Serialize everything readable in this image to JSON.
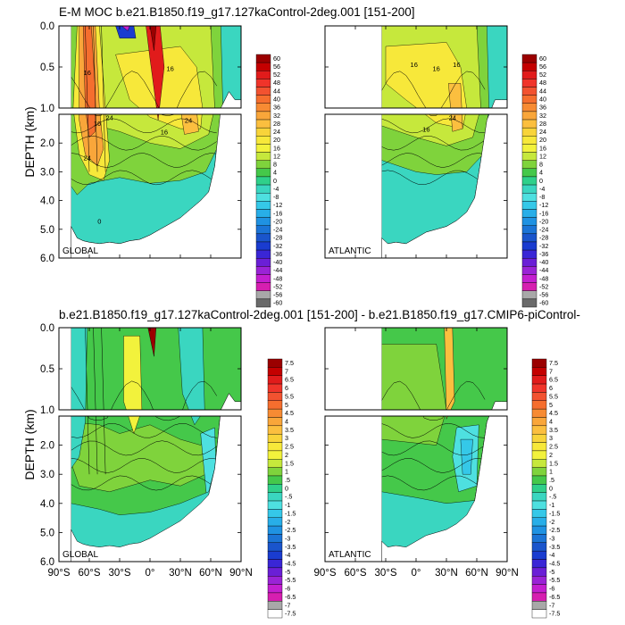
{
  "titles": {
    "top": "E-M MOC  b.e21.B1850.f19_g17.127kaControl-2deg.001 [151-200]",
    "bottom": "b.e21.B1850.f19_g17.127kaControl-2deg.001 [151-200] - b.e21.B1850.f19_g17.CMIP6-piControl-"
  },
  "colors": {
    "bg": "#ffffff",
    "land": "#ffffff",
    "contour": "#000000"
  },
  "chart_data": [
    {
      "type": "heatmap",
      "name": "global-moc",
      "panel_label": "GLOBAL",
      "ylabel": "DEPTH (km)",
      "xlim": [
        -90,
        90
      ],
      "ylim": [
        6.0,
        0.0
      ],
      "y_break_km": 1.0,
      "ytick_labels_upper": [
        "0.0",
        "0.5",
        "1.0"
      ],
      "ytick_labels_lower": [
        "2.0",
        "3.0",
        "4.0",
        "5.0",
        "6.0"
      ],
      "xtick_labels": [],
      "contour_labels": [
        "16",
        "16",
        "16",
        "24",
        "24",
        "24",
        "16",
        "0"
      ],
      "levels": [
        -60,
        -56,
        -52,
        -48,
        -44,
        -40,
        -36,
        -32,
        -28,
        -24,
        -20,
        -16,
        -12,
        -8,
        -4,
        0,
        4,
        8,
        12,
        16,
        20,
        24,
        28,
        32,
        36,
        40,
        44,
        48,
        52,
        56,
        60
      ],
      "dominant": "strong positive overturning cell in the Southern Ocean and a broad 16–24 Sv cell in the northern hemisphere; weak negative (−4 to 0) abyssal cell below 3 km"
    },
    {
      "type": "heatmap",
      "name": "atlantic-moc",
      "panel_label": "ATLANTIC",
      "xlim": [
        -90,
        90
      ],
      "ylim": [
        6.0,
        0.0
      ],
      "contour_labels": [
        "16",
        "16",
        "16",
        "24",
        "16"
      ],
      "dominant": "Atlantic overturning cell peaking near 24 Sv around 40°N, 1 km depth; negative abyssal cell"
    },
    {
      "type": "heatmap",
      "name": "global-moc-difference",
      "panel_label": "GLOBAL",
      "ylabel": "DEPTH (km)",
      "xlim": [
        -90,
        90
      ],
      "ylim": [
        6.0,
        0.0
      ],
      "ytick_labels_upper": [
        "0.0",
        "0.5",
        "1.0"
      ],
      "ytick_labels_lower": [
        "2.0",
        "3.0",
        "4.0",
        "5.0",
        "6.0"
      ],
      "xtick_labels": [
        "90°S",
        "60°S",
        "30°S",
        "0°",
        "30°N",
        "60°N",
        "90°N"
      ],
      "levels": [
        -7.5,
        -7,
        -6.5,
        -6,
        -5.5,
        -5,
        -4.5,
        -4,
        -3.5,
        -3,
        -2.5,
        -2,
        -1.5,
        -1,
        -0.5,
        0,
        0.5,
        1,
        1.5,
        2,
        2.5,
        3,
        3.5,
        4,
        4.5,
        5,
        5.5,
        6,
        6.5,
        7,
        7.5
      ],
      "dominant": "difference field mostly between −1 and +1.5 Sv"
    },
    {
      "type": "heatmap",
      "name": "atlantic-moc-difference",
      "panel_label": "ATLANTIC",
      "xlim": [
        -90,
        90
      ],
      "ylim": [
        6.0,
        0.0
      ],
      "xtick_labels": [
        "90°S",
        "60°S",
        "30°S",
        "0°",
        "30°N",
        "60°N",
        "90°N"
      ],
      "dominant": "difference field mostly between −1 and +1 Sv"
    }
  ],
  "colorbars": [
    {
      "name": "moc-colorbar",
      "labels": [
        "60",
        "56",
        "52",
        "48",
        "44",
        "40",
        "36",
        "32",
        "28",
        "24",
        "20",
        "16",
        "12",
        "8",
        "4",
        "0",
        "-4",
        "-8",
        "-12",
        "-16",
        "-20",
        "-24",
        "-28",
        "-32",
        "-36",
        "-40",
        "-44",
        "-48",
        "-52",
        "-56",
        "-60"
      ],
      "colors": [
        "#9b0000",
        "#c40000",
        "#e11b1b",
        "#f0342a",
        "#f25230",
        "#f56e2e",
        "#f78b33",
        "#f9a63a",
        "#fbbf3f",
        "#f8d43a",
        "#f7e83a",
        "#f2f23c",
        "#c6e83c",
        "#7fd33c",
        "#45c84a",
        "#2fd08a",
        "#3ad6c0",
        "#4ee0e0",
        "#35c8e8",
        "#28aee8",
        "#1f92e2",
        "#1b74d6",
        "#1a55cc",
        "#1a3cd0",
        "#3a26d6",
        "#6a1fd6",
        "#9a23d6",
        "#c41fd0",
        "#d61fb0",
        "#a8a8a8",
        "#6a6a6a"
      ]
    },
    {
      "name": "difference-colorbar",
      "labels": [
        "7.5",
        "7",
        "6.5",
        "6",
        "5.5",
        "5",
        "4.5",
        "4",
        "3.5",
        "3",
        "2.5",
        "2",
        "1.5",
        "1",
        ".5",
        "0",
        "-.5",
        "-1",
        "-1.5",
        "-2",
        "-2.5",
        "-3",
        "-3.5",
        "-4",
        "-4.5",
        "-5",
        "-5.5",
        "-6",
        "-6.5",
        "-7",
        "-7.5"
      ],
      "colors": [
        "#9b0000",
        "#c40000",
        "#e11b1b",
        "#f0342a",
        "#f25230",
        "#f56e2e",
        "#f78b33",
        "#f9a63a",
        "#fbbf3f",
        "#f8d43a",
        "#f7e83a",
        "#f2f23c",
        "#c6e83c",
        "#7fd33c",
        "#45c84a",
        "#2fd08a",
        "#3ad6c0",
        "#4ee0e0",
        "#35c8e8",
        "#28aee8",
        "#1f92e2",
        "#1b74d6",
        "#1a55cc",
        "#1a3cd0",
        "#3a26d6",
        "#6a1fd6",
        "#9a23d6",
        "#c41fd0",
        "#d61fb0",
        "#a8a8a8",
        "#ffffff"
      ]
    }
  ]
}
